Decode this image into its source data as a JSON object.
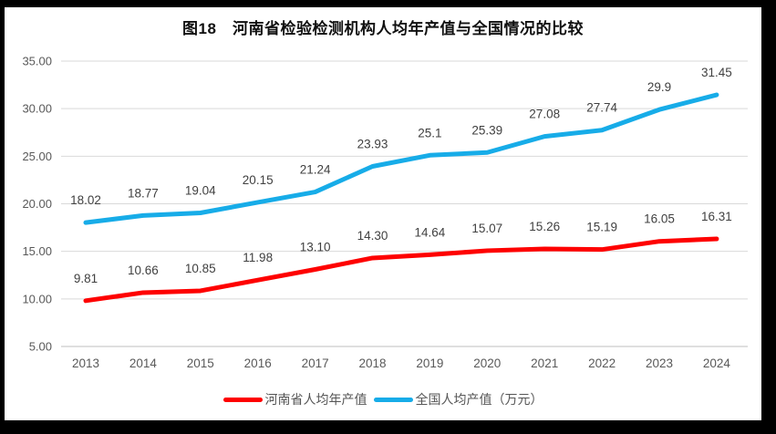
{
  "title": "图18　河南省检验检测机构人均年产值与全国情况的比较",
  "chart_data": {
    "type": "line",
    "title": "图18　河南省检验检测机构人均年产值与全国情况的比较",
    "categories": [
      "2013",
      "2014",
      "2015",
      "2016",
      "2017",
      "2018",
      "2019",
      "2020",
      "2021",
      "2022",
      "2023",
      "2024"
    ],
    "series": [
      {
        "name": "河南省人均年产值",
        "color": "#FE0000",
        "values": [
          9.81,
          10.66,
          10.85,
          11.98,
          13.1,
          14.3,
          14.64,
          15.07,
          15.26,
          15.19,
          16.05,
          16.31
        ],
        "labels": [
          "9.81",
          "10.66",
          "10.85",
          "11.98",
          "13.10",
          "14.30",
          "14.64",
          "15.07",
          "15.26",
          "15.19",
          "16.05",
          "16.31"
        ]
      },
      {
        "name": "全国人均产值（万元）",
        "color": "#17ACE8",
        "values": [
          18.02,
          18.77,
          19.04,
          20.15,
          21.24,
          23.93,
          25.1,
          25.39,
          27.08,
          27.74,
          29.9,
          31.45
        ],
        "labels": [
          "18.02",
          "18.77",
          "19.04",
          "20.15",
          "21.24",
          "23.93",
          "25.1",
          "25.39",
          "27.08",
          "27.74",
          "29.9",
          "31.45"
        ]
      }
    ],
    "ylim": [
      5,
      35
    ],
    "ytick_step": 5,
    "ytick_labels": [
      "5.00",
      "10.00",
      "15.00",
      "20.00",
      "25.00",
      "30.00",
      "35.00"
    ],
    "grid": true,
    "legend_position": "bottom",
    "styles": {
      "gridline_color": "#D9D9D9",
      "axis_line_color": "#BFBFBF",
      "axis_text_color": "#595959",
      "data_label_color": "#404040",
      "frame_color": "#000000",
      "background": "#FFFFFF"
    }
  }
}
